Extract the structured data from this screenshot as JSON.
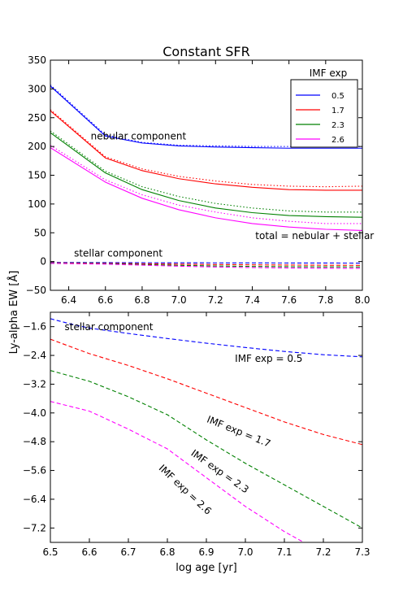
{
  "figure": {
    "ylabel_shared": "Ly-alpha EW [Å]"
  },
  "chart_data": [
    {
      "type": "line",
      "title": "Constant SFR",
      "xlabel": "",
      "xlim": [
        6.3,
        8.0
      ],
      "ylim": [
        -50,
        350
      ],
      "xticks": [
        "6.4",
        "6.6",
        "6.8",
        "7.0",
        "7.2",
        "7.4",
        "7.6",
        "7.8",
        "8.0"
      ],
      "yticks": [
        "−50",
        "0",
        "50",
        "100",
        "150",
        "200",
        "250",
        "300",
        "350"
      ],
      "grid": false,
      "legend": {
        "title": "IMF exp",
        "placement": "top-right",
        "entries": [
          {
            "label": "0.5",
            "color": "#0000ff"
          },
          {
            "label": "1.7",
            "color": "#ff0000"
          },
          {
            "label": "2.3",
            "color": "#008000"
          },
          {
            "label": "2.6",
            "color": "#ff00ff"
          }
        ]
      },
      "annotations": [
        {
          "text": "nebular component",
          "at": [
            6.78,
            212
          ]
        },
        {
          "text": "total = nebular + stellar",
          "at": [
            7.74,
            39
          ]
        },
        {
          "text": "stellar component",
          "at": [
            6.67,
            9
          ]
        }
      ],
      "series": [
        {
          "name": "0.5",
          "color": "#0000ff",
          "component": "total",
          "x": [
            6.3,
            6.6,
            6.8,
            7.0,
            7.2,
            7.4,
            7.6,
            7.8,
            8.0
          ],
          "y": [
            305,
            218,
            206,
            201,
            199,
            198,
            197,
            197,
            197
          ]
        },
        {
          "name": "0.5",
          "color": "#0000ff",
          "component": "nebular",
          "x": [
            6.3,
            6.6,
            6.8,
            7.0,
            7.2,
            7.4,
            7.6,
            7.8,
            8.0
          ],
          "y": [
            307,
            220,
            207,
            202,
            201,
            200,
            200,
            199,
            200
          ]
        },
        {
          "name": "0.5",
          "color": "#0000ff",
          "component": "stellar",
          "x": [
            6.3,
            6.6,
            6.8,
            7.0,
            7.2,
            7.4,
            7.6,
            7.8,
            8.0
          ],
          "y": [
            -1.5,
            -1.9,
            -2.1,
            -2.2,
            -2.3,
            -2.4,
            -2.5,
            -2.6,
            -2.7
          ]
        },
        {
          "name": "1.7",
          "color": "#ff0000",
          "component": "total",
          "x": [
            6.3,
            6.6,
            6.8,
            7.0,
            7.2,
            7.4,
            7.6,
            7.8,
            8.0
          ],
          "y": [
            262,
            180,
            158,
            144,
            135,
            129,
            125,
            124,
            124
          ]
        },
        {
          "name": "1.7",
          "color": "#ff0000",
          "component": "nebular",
          "x": [
            6.3,
            6.6,
            6.8,
            7.0,
            7.2,
            7.4,
            7.6,
            7.8,
            8.0
          ],
          "y": [
            264,
            182,
            161,
            148,
            140,
            134,
            131,
            130,
            131
          ]
        },
        {
          "name": "1.7",
          "color": "#ff0000",
          "component": "stellar",
          "x": [
            6.3,
            6.6,
            6.8,
            7.0,
            7.2,
            7.4,
            7.6,
            7.8,
            8.0
          ],
          "y": [
            -2.2,
            -3.1,
            -3.9,
            -4.6,
            -5.2,
            -5.7,
            -6.1,
            -6.4,
            -6.6
          ]
        },
        {
          "name": "2.3",
          "color": "#008000",
          "component": "total",
          "x": [
            6.3,
            6.6,
            6.8,
            7.0,
            7.2,
            7.4,
            7.6,
            7.8,
            8.0
          ],
          "y": [
            224,
            154,
            125,
            106,
            93,
            85,
            80,
            78,
            77
          ]
        },
        {
          "name": "2.3",
          "color": "#008000",
          "component": "nebular",
          "x": [
            6.3,
            6.6,
            6.8,
            7.0,
            7.2,
            7.4,
            7.6,
            7.8,
            8.0
          ],
          "y": [
            227,
            157,
            130,
            113,
            101,
            93,
            88,
            86,
            86
          ]
        },
        {
          "name": "2.3",
          "color": "#008000",
          "component": "stellar",
          "x": [
            6.3,
            6.6,
            6.8,
            7.0,
            7.2,
            7.4,
            7.6,
            7.8,
            8.0
          ],
          "y": [
            -2.7,
            -3.8,
            -5.2,
            -6.6,
            -7.7,
            -8.5,
            -9.0,
            -9.3,
            -9.4
          ]
        },
        {
          "name": "2.6",
          "color": "#ff00ff",
          "component": "total",
          "x": [
            6.3,
            6.6,
            6.8,
            7.0,
            7.2,
            7.4,
            7.6,
            7.8,
            8.0
          ],
          "y": [
            198,
            138,
            110,
            90,
            76,
            66,
            60,
            56,
            54
          ]
        },
        {
          "name": "2.6",
          "color": "#ff00ff",
          "component": "nebular",
          "x": [
            6.3,
            6.6,
            6.8,
            7.0,
            7.2,
            7.4,
            7.6,
            7.8,
            8.0
          ],
          "y": [
            202,
            142,
            116,
            98,
            86,
            76,
            70,
            66,
            66
          ]
        },
        {
          "name": "2.6",
          "color": "#ff00ff",
          "component": "stellar",
          "x": [
            6.3,
            6.6,
            6.8,
            7.0,
            7.2,
            7.4,
            7.6,
            7.8,
            8.0
          ],
          "y": [
            -3.2,
            -4.5,
            -6.3,
            -8.1,
            -9.5,
            -10.5,
            -11.2,
            -11.6,
            -11.8
          ]
        }
      ]
    },
    {
      "type": "line",
      "title": "",
      "xlabel": "log age [yr]",
      "xlim": [
        6.5,
        7.3
      ],
      "ylim": [
        -7.6,
        -1.2
      ],
      "xticks": [
        "6.5",
        "6.6",
        "6.7",
        "6.8",
        "6.9",
        "7.0",
        "7.1",
        "7.2",
        "7.3"
      ],
      "yticks": [
        "−7.2",
        "−6.4",
        "−5.6",
        "−4.8",
        "−4.0",
        "−3.2",
        "−2.4",
        "−1.6"
      ],
      "grid": false,
      "annotations": [
        {
          "text": "stellar component",
          "at": [
            6.65,
            -1.7
          ]
        },
        {
          "text": "IMF exp = 0.5",
          "at": [
            7.06,
            -2.58
          ]
        },
        {
          "text": "IMF exp = 1.7",
          "at": [
            6.98,
            -4.6
          ],
          "rotation": 22
        },
        {
          "text": "IMF exp = 2.3",
          "at": [
            6.93,
            -5.7
          ],
          "rotation": 35
        },
        {
          "text": "IMF exp = 2.6",
          "at": [
            6.84,
            -6.2
          ],
          "rotation": 43
        }
      ],
      "series": [
        {
          "name": "0.5",
          "color": "#0000ff",
          "x": [
            6.5,
            6.55,
            6.6,
            6.7,
            6.8,
            6.9,
            7.0,
            7.1,
            7.2,
            7.3
          ],
          "y": [
            -1.38,
            -1.52,
            -1.64,
            -1.79,
            -1.93,
            -2.06,
            -2.18,
            -2.29,
            -2.38,
            -2.44
          ]
        },
        {
          "name": "1.7",
          "color": "#ff0000",
          "x": [
            6.5,
            6.6,
            6.7,
            6.8,
            6.9,
            7.0,
            7.1,
            7.2,
            7.3
          ],
          "y": [
            -1.95,
            -2.35,
            -2.68,
            -3.05,
            -3.45,
            -3.85,
            -4.25,
            -4.6,
            -4.88
          ]
        },
        {
          "name": "2.3",
          "color": "#008000",
          "x": [
            6.5,
            6.6,
            6.7,
            6.8,
            6.9,
            7.0,
            7.1,
            7.2,
            7.3
          ],
          "y": [
            -2.82,
            -3.12,
            -3.55,
            -4.05,
            -4.75,
            -5.4,
            -6.0,
            -6.6,
            -7.2
          ]
        },
        {
          "name": "2.6",
          "color": "#ff00ff",
          "x": [
            6.5,
            6.6,
            6.7,
            6.8,
            6.9,
            7.0,
            7.1,
            7.15,
            7.2
          ],
          "y": [
            -3.68,
            -3.95,
            -4.45,
            -5.0,
            -5.8,
            -6.6,
            -7.3,
            -7.6,
            -7.95
          ]
        }
      ]
    }
  ]
}
